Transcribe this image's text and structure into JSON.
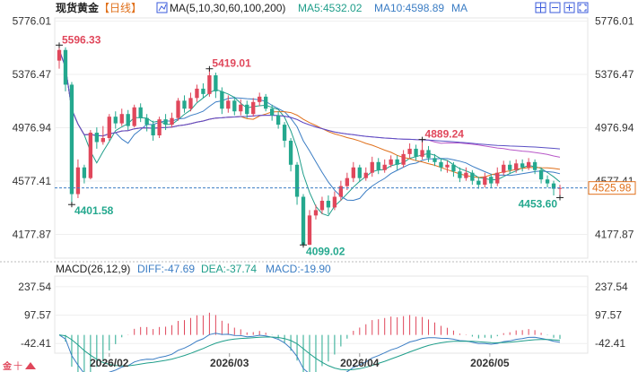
{
  "header": {
    "title": "现货黄金",
    "period": "【日线】",
    "ma_label": "MA(5,10,30,60,100,200)",
    "ma5": "MA5:4532.02",
    "ma10": "MA10:4598.89",
    "ma": "MA"
  },
  "macd_header": {
    "label": "MACD(26,12,9)",
    "diff": "DIFF:-47.69",
    "dea": "DEA:-37.74",
    "macd": "MACD:-19.90"
  },
  "colors": {
    "up": "#e0475b",
    "down": "#24a88e",
    "ma5": "#1f9e8a",
    "ma10": "#3b7dc4",
    "ma30": "#e0701b",
    "ma60": "#b858c8",
    "ma100": "#5a4fc4",
    "price_line": "#3b7dc4"
  },
  "chart_data": {
    "type": "candlestick",
    "y_ticks": [
      "5776.01",
      "5376.47",
      "4976.94",
      "4577.41",
      "4177.87"
    ],
    "ylim": [
      4000,
      5800
    ],
    "x_ticks": [
      "2026/02",
      "2026/03",
      "2026/04",
      "2026/05"
    ],
    "current_price": "4525.98",
    "annotations": [
      {
        "label": "5596.33",
        "kind": "high"
      },
      {
        "label": "5419.01",
        "kind": "high"
      },
      {
        "label": "4889.24",
        "kind": "high"
      },
      {
        "label": "4401.58",
        "kind": "low"
      },
      {
        "label": "4099.02",
        "kind": "low"
      },
      {
        "label": "4453.60",
        "kind": "low"
      }
    ],
    "candles": [
      [
        5480,
        5560,
        5596,
        5420
      ],
      [
        5560,
        5300,
        5580,
        5250
      ],
      [
        5300,
        4480,
        5320,
        4402
      ],
      [
        4480,
        4680,
        4740,
        4450
      ],
      [
        4680,
        4600,
        4700,
        4560
      ],
      [
        4600,
        4940,
        4960,
        4590
      ],
      [
        4940,
        4870,
        4980,
        4820
      ],
      [
        4870,
        4900,
        4990,
        4850
      ],
      [
        4900,
        5060,
        5080,
        4880
      ],
      [
        5060,
        5010,
        5100,
        4970
      ],
      [
        5010,
        5080,
        5120,
        4990
      ],
      [
        5080,
        4990,
        5110,
        4960
      ],
      [
        4990,
        5130,
        5150,
        4980
      ],
      [
        5130,
        5050,
        5160,
        5020
      ],
      [
        5050,
        5000,
        5080,
        4950
      ],
      [
        5000,
        4920,
        5030,
        4880
      ],
      [
        4920,
        5040,
        5060,
        4900
      ],
      [
        5040,
        5000,
        5080,
        4960
      ],
      [
        5000,
        5050,
        5090,
        4980
      ],
      [
        5050,
        5180,
        5200,
        5030
      ],
      [
        5180,
        5120,
        5220,
        5090
      ],
      [
        5120,
        5200,
        5240,
        5100
      ],
      [
        5200,
        5270,
        5300,
        5170
      ],
      [
        5270,
        5230,
        5310,
        5200
      ],
      [
        5230,
        5370,
        5419,
        5210
      ],
      [
        5370,
        5250,
        5390,
        5200
      ],
      [
        5250,
        5120,
        5280,
        5080
      ],
      [
        5120,
        5180,
        5220,
        5090
      ],
      [
        5180,
        5100,
        5210,
        5070
      ],
      [
        5100,
        5150,
        5190,
        5070
      ],
      [
        5150,
        5080,
        5180,
        5050
      ],
      [
        5080,
        5170,
        5200,
        5060
      ],
      [
        5170,
        5210,
        5240,
        5140
      ],
      [
        5210,
        5120,
        5230,
        5100
      ],
      [
        5120,
        5070,
        5150,
        5030
      ],
      [
        5070,
        5000,
        5100,
        4970
      ],
      [
        5000,
        4880,
        5020,
        4830
      ],
      [
        4880,
        4700,
        4900,
        4650
      ],
      [
        4700,
        4460,
        4720,
        4400
      ],
      [
        4460,
        4100,
        4480,
        4099
      ],
      [
        4100,
        4320,
        4360,
        4099
      ],
      [
        4320,
        4360,
        4400,
        4290
      ],
      [
        4360,
        4430,
        4460,
        4330
      ],
      [
        4430,
        4380,
        4470,
        4330
      ],
      [
        4380,
        4460,
        4500,
        4360
      ],
      [
        4460,
        4540,
        4580,
        4430
      ],
      [
        4540,
        4600,
        4640,
        4510
      ],
      [
        4600,
        4680,
        4720,
        4570
      ],
      [
        4680,
        4600,
        4700,
        4570
      ],
      [
        4600,
        4640,
        4680,
        4580
      ],
      [
        4640,
        4720,
        4760,
        4610
      ],
      [
        4720,
        4660,
        4750,
        4630
      ],
      [
        4660,
        4700,
        4740,
        4640
      ],
      [
        4700,
        4740,
        4770,
        4680
      ],
      [
        4740,
        4700,
        4770,
        4660
      ],
      [
        4700,
        4780,
        4810,
        4680
      ],
      [
        4780,
        4820,
        4860,
        4750
      ],
      [
        4820,
        4760,
        4850,
        4730
      ],
      [
        4760,
        4810,
        4889,
        4740
      ],
      [
        4810,
        4750,
        4840,
        4720
      ],
      [
        4750,
        4720,
        4780,
        4690
      ],
      [
        4720,
        4680,
        4750,
        4650
      ],
      [
        4680,
        4700,
        4730,
        4640
      ],
      [
        4700,
        4650,
        4720,
        4610
      ],
      [
        4650,
        4600,
        4680,
        4570
      ],
      [
        4600,
        4640,
        4680,
        4580
      ],
      [
        4640,
        4580,
        4660,
        4550
      ],
      [
        4580,
        4550,
        4610,
        4520
      ],
      [
        4550,
        4610,
        4640,
        4530
      ],
      [
        4610,
        4560,
        4630,
        4530
      ],
      [
        4560,
        4640,
        4680,
        4540
      ],
      [
        4640,
        4700,
        4730,
        4620
      ],
      [
        4700,
        4660,
        4730,
        4630
      ],
      [
        4660,
        4710,
        4740,
        4640
      ],
      [
        4710,
        4680,
        4740,
        4650
      ],
      [
        4680,
        4720,
        4750,
        4660
      ],
      [
        4720,
        4660,
        4740,
        4630
      ],
      [
        4660,
        4590,
        4680,
        4560
      ],
      [
        4590,
        4560,
        4620,
        4530
      ],
      [
        4560,
        4520,
        4580,
        4470
      ],
      [
        4520,
        4526,
        4550,
        4454
      ]
    ],
    "macd": {
      "y_ticks": [
        "237.54",
        "97.57",
        "-42.41"
      ],
      "ylim": [
        -90,
        290
      ]
    }
  }
}
